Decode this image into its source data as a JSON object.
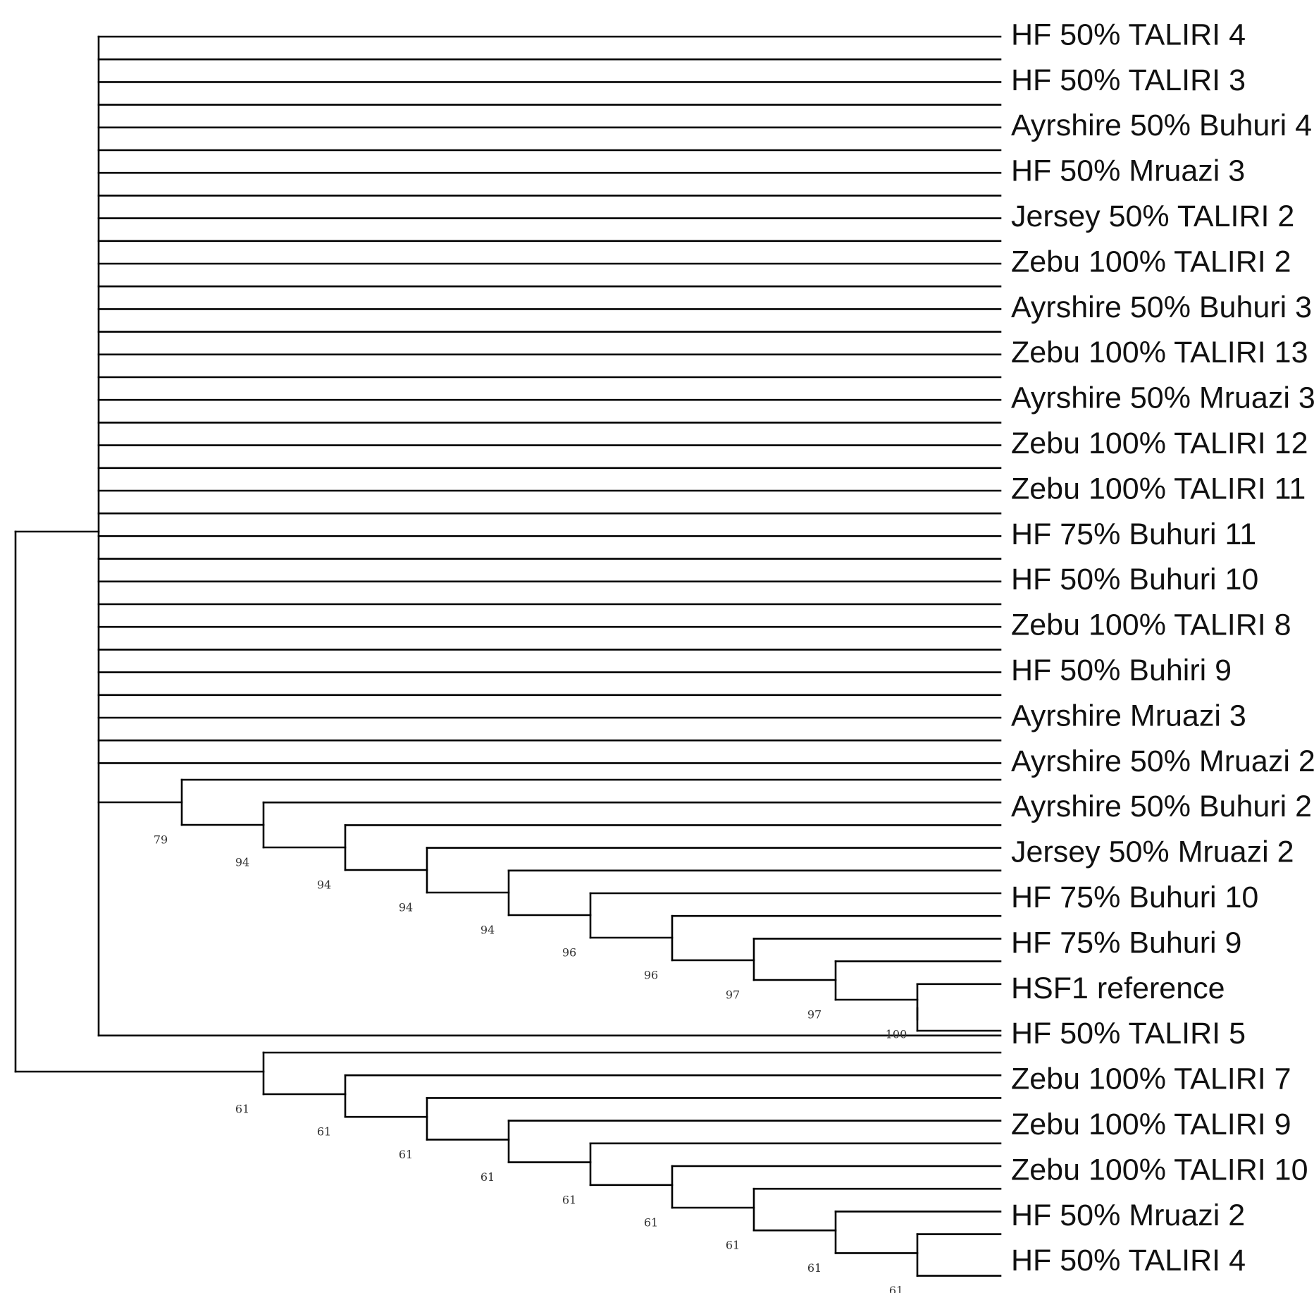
{
  "tree": {
    "leaves": [
      "HF 50% TALIRI 4",
      "HF 50% TALIRI 3",
      "Ayrshire 50% Buhuri 4",
      "HF 50% Mruazi 3",
      "Jersey 50% TALIRI 2",
      "Zebu 100% TALIRI 2",
      "Ayrshire 50% Buhuri 3",
      "Zebu 100% TALIRI 13",
      "Ayrshire 50% Mruazi 3",
      "Zebu 100% TALIRI 12",
      "Zebu 100% TALIRI 11",
      "HF 75% Buhuri 11",
      "HF 50% Buhuri 10",
      "Zebu 100% TALIRI 8",
      "HF 50% Buhiri 9",
      "Ayrshire Mruazi 3",
      "Ayrshire 50% Mruazi 2",
      "Ayrshire 50% Buhuri 2",
      "Jersey 50% Mruazi 2",
      "HF 75% Buhuri 10",
      "HF 75% Buhuri 9",
      "HSF1 reference",
      "HF 50% TALIRI 5",
      "Zebu 100% TALIRI 7",
      "Zebu 100% TALIRI 9",
      "Zebu 100% TALIRI 10",
      "HF 50% Mruazi 2",
      "HF 50% TALIRI 4"
    ],
    "support_values": {
      "upper_clade": [
        "79",
        "94",
        "94",
        "94",
        "94",
        "96",
        "96",
        "97",
        "97",
        "100"
      ],
      "lower_clade": [
        "61",
        "61",
        "61",
        "61",
        "61",
        "61",
        "61",
        "61",
        "61"
      ]
    },
    "colors": {
      "branch": "#000000",
      "leaf_text": "#111111",
      "support_text": "#333333"
    }
  }
}
